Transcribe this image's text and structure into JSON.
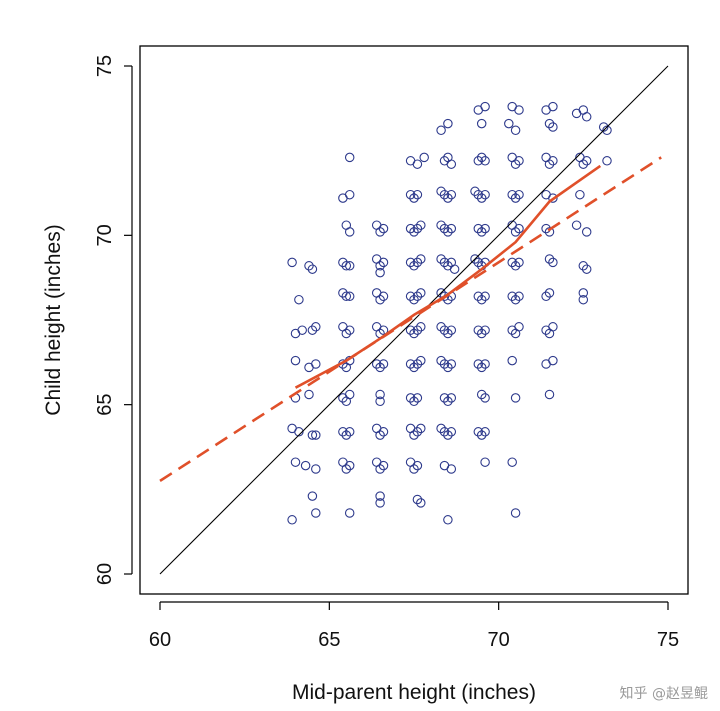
{
  "chart_data": {
    "type": "scatter",
    "title": "",
    "xlabel": "Mid-parent height (inches)",
    "ylabel": "Child height (inches)",
    "xlim": [
      59.4,
      75.6
    ],
    "ylim": [
      59.4,
      75.6
    ],
    "xticks": [
      60,
      65,
      70,
      75
    ],
    "yticks": [
      60,
      65,
      70,
      75
    ],
    "series": [
      {
        "name": "observations",
        "style": "open-circle",
        "color": "#2e3a8c",
        "points": [
          [
            63.9,
            69.2
          ],
          [
            64.1,
            68.1
          ],
          [
            64.4,
            69.1
          ],
          [
            64.5,
            69.0
          ],
          [
            64.0,
            67.1
          ],
          [
            64.2,
            67.2
          ],
          [
            64.6,
            67.3
          ],
          [
            64.5,
            67.2
          ],
          [
            64.0,
            66.3
          ],
          [
            64.4,
            66.1
          ],
          [
            64.6,
            66.2
          ],
          [
            64.0,
            65.2
          ],
          [
            64.4,
            65.3
          ],
          [
            63.9,
            64.3
          ],
          [
            64.1,
            64.2
          ],
          [
            64.5,
            64.1
          ],
          [
            64.6,
            64.1
          ],
          [
            64.0,
            63.3
          ],
          [
            64.3,
            63.2
          ],
          [
            64.6,
            63.1
          ],
          [
            64.5,
            62.3
          ],
          [
            63.9,
            61.6
          ],
          [
            64.6,
            61.8
          ],
          [
            65.6,
            72.3
          ],
          [
            65.4,
            71.1
          ],
          [
            65.6,
            71.2
          ],
          [
            65.5,
            70.3
          ],
          [
            65.6,
            70.1
          ],
          [
            65.4,
            69.2
          ],
          [
            65.6,
            69.1
          ],
          [
            65.5,
            69.1
          ],
          [
            65.4,
            68.3
          ],
          [
            65.6,
            68.2
          ],
          [
            65.5,
            68.2
          ],
          [
            65.4,
            67.3
          ],
          [
            65.6,
            67.2
          ],
          [
            65.5,
            67.1
          ],
          [
            65.4,
            66.2
          ],
          [
            65.6,
            66.3
          ],
          [
            65.5,
            66.1
          ],
          [
            65.4,
            65.2
          ],
          [
            65.6,
            65.3
          ],
          [
            65.5,
            65.1
          ],
          [
            65.4,
            64.2
          ],
          [
            65.6,
            64.2
          ],
          [
            65.5,
            64.1
          ],
          [
            65.4,
            63.3
          ],
          [
            65.6,
            63.2
          ],
          [
            65.5,
            63.1
          ],
          [
            65.6,
            61.8
          ],
          [
            66.4,
            70.3
          ],
          [
            66.6,
            70.2
          ],
          [
            66.5,
            70.1
          ],
          [
            66.4,
            69.3
          ],
          [
            66.6,
            69.2
          ],
          [
            66.5,
            69.1
          ],
          [
            66.5,
            68.9
          ],
          [
            66.4,
            68.3
          ],
          [
            66.6,
            68.2
          ],
          [
            66.5,
            68.1
          ],
          [
            66.4,
            67.3
          ],
          [
            66.6,
            67.2
          ],
          [
            66.5,
            67.1
          ],
          [
            66.4,
            66.2
          ],
          [
            66.6,
            66.2
          ],
          [
            66.5,
            66.1
          ],
          [
            66.5,
            65.3
          ],
          [
            66.5,
            65.1
          ],
          [
            66.4,
            64.3
          ],
          [
            66.6,
            64.2
          ],
          [
            66.5,
            64.1
          ],
          [
            66.4,
            63.3
          ],
          [
            66.6,
            63.2
          ],
          [
            66.5,
            63.1
          ],
          [
            66.5,
            62.3
          ],
          [
            66.5,
            62.1
          ],
          [
            67.4,
            72.2
          ],
          [
            67.6,
            72.1
          ],
          [
            67.8,
            72.3
          ],
          [
            67.4,
            71.2
          ],
          [
            67.6,
            71.2
          ],
          [
            67.5,
            71.1
          ],
          [
            67.4,
            70.2
          ],
          [
            67.6,
            70.2
          ],
          [
            67.5,
            70.1
          ],
          [
            67.7,
            70.3
          ],
          [
            67.4,
            69.2
          ],
          [
            67.6,
            69.2
          ],
          [
            67.5,
            69.1
          ],
          [
            67.7,
            69.3
          ],
          [
            67.4,
            68.2
          ],
          [
            67.6,
            68.2
          ],
          [
            67.5,
            68.1
          ],
          [
            67.7,
            68.3
          ],
          [
            67.4,
            67.2
          ],
          [
            67.6,
            67.2
          ],
          [
            67.5,
            67.1
          ],
          [
            67.7,
            67.3
          ],
          [
            67.4,
            66.2
          ],
          [
            67.6,
            66.2
          ],
          [
            67.5,
            66.1
          ],
          [
            67.7,
            66.3
          ],
          [
            67.4,
            65.2
          ],
          [
            67.6,
            65.2
          ],
          [
            67.5,
            65.1
          ],
          [
            67.4,
            64.3
          ],
          [
            67.6,
            64.2
          ],
          [
            67.5,
            64.1
          ],
          [
            67.7,
            64.3
          ],
          [
            67.4,
            63.3
          ],
          [
            67.6,
            63.2
          ],
          [
            67.5,
            63.1
          ],
          [
            67.6,
            62.2
          ],
          [
            67.7,
            62.1
          ],
          [
            68.3,
            73.1
          ],
          [
            68.5,
            73.3
          ],
          [
            68.4,
            72.2
          ],
          [
            68.6,
            72.1
          ],
          [
            68.5,
            72.3
          ],
          [
            68.4,
            71.2
          ],
          [
            68.6,
            71.2
          ],
          [
            68.5,
            71.1
          ],
          [
            68.3,
            71.3
          ],
          [
            68.4,
            70.2
          ],
          [
            68.6,
            70.2
          ],
          [
            68.5,
            70.1
          ],
          [
            68.3,
            70.3
          ],
          [
            68.4,
            69.2
          ],
          [
            68.6,
            69.2
          ],
          [
            68.5,
            69.1
          ],
          [
            68.3,
            69.3
          ],
          [
            68.7,
            69.0
          ],
          [
            68.4,
            68.2
          ],
          [
            68.6,
            68.2
          ],
          [
            68.5,
            68.1
          ],
          [
            68.3,
            68.3
          ],
          [
            68.4,
            67.2
          ],
          [
            68.6,
            67.2
          ],
          [
            68.5,
            67.1
          ],
          [
            68.3,
            67.3
          ],
          [
            68.4,
            66.2
          ],
          [
            68.6,
            66.2
          ],
          [
            68.5,
            66.1
          ],
          [
            68.3,
            66.3
          ],
          [
            68.4,
            65.2
          ],
          [
            68.6,
            65.2
          ],
          [
            68.5,
            65.1
          ],
          [
            68.4,
            64.2
          ],
          [
            68.6,
            64.2
          ],
          [
            68.5,
            64.1
          ],
          [
            68.3,
            64.3
          ],
          [
            68.4,
            63.2
          ],
          [
            68.6,
            63.1
          ],
          [
            68.5,
            61.6
          ],
          [
            69.4,
            73.7
          ],
          [
            69.6,
            73.8
          ],
          [
            69.5,
            73.3
          ],
          [
            69.4,
            72.2
          ],
          [
            69.6,
            72.2
          ],
          [
            69.5,
            72.3
          ],
          [
            69.4,
            71.2
          ],
          [
            69.6,
            71.2
          ],
          [
            69.5,
            71.1
          ],
          [
            69.3,
            71.3
          ],
          [
            69.4,
            70.2
          ],
          [
            69.6,
            70.2
          ],
          [
            69.5,
            70.1
          ],
          [
            69.4,
            69.2
          ],
          [
            69.6,
            69.2
          ],
          [
            69.5,
            69.1
          ],
          [
            69.3,
            69.3
          ],
          [
            69.4,
            68.2
          ],
          [
            69.6,
            68.2
          ],
          [
            69.5,
            68.1
          ],
          [
            69.4,
            67.2
          ],
          [
            69.6,
            67.2
          ],
          [
            69.5,
            67.1
          ],
          [
            69.4,
            66.2
          ],
          [
            69.6,
            66.2
          ],
          [
            69.5,
            66.1
          ],
          [
            69.5,
            65.3
          ],
          [
            69.6,
            65.2
          ],
          [
            69.4,
            64.2
          ],
          [
            69.6,
            64.2
          ],
          [
            69.5,
            64.1
          ],
          [
            69.6,
            63.3
          ],
          [
            70.4,
            73.8
          ],
          [
            70.6,
            73.7
          ],
          [
            70.5,
            73.1
          ],
          [
            70.3,
            73.3
          ],
          [
            70.4,
            72.3
          ],
          [
            70.6,
            72.2
          ],
          [
            70.5,
            72.1
          ],
          [
            70.4,
            71.2
          ],
          [
            70.6,
            71.2
          ],
          [
            70.5,
            71.1
          ],
          [
            70.4,
            70.3
          ],
          [
            70.6,
            70.2
          ],
          [
            70.5,
            70.1
          ],
          [
            70.4,
            69.2
          ],
          [
            70.6,
            69.2
          ],
          [
            70.5,
            69.1
          ],
          [
            70.4,
            68.2
          ],
          [
            70.6,
            68.2
          ],
          [
            70.5,
            68.1
          ],
          [
            70.4,
            67.2
          ],
          [
            70.6,
            67.3
          ],
          [
            70.5,
            67.1
          ],
          [
            70.4,
            66.3
          ],
          [
            70.5,
            65.2
          ],
          [
            70.4,
            63.3
          ],
          [
            70.5,
            61.8
          ],
          [
            71.4,
            73.7
          ],
          [
            71.6,
            73.8
          ],
          [
            71.5,
            73.3
          ],
          [
            71.6,
            73.2
          ],
          [
            71.4,
            72.3
          ],
          [
            71.6,
            72.2
          ],
          [
            71.5,
            72.1
          ],
          [
            71.4,
            71.2
          ],
          [
            71.6,
            71.1
          ],
          [
            71.4,
            70.2
          ],
          [
            71.5,
            70.1
          ],
          [
            71.5,
            69.3
          ],
          [
            71.6,
            69.2
          ],
          [
            71.4,
            68.2
          ],
          [
            71.5,
            68.3
          ],
          [
            71.4,
            67.2
          ],
          [
            71.6,
            67.3
          ],
          [
            71.5,
            67.1
          ],
          [
            71.4,
            66.2
          ],
          [
            71.6,
            66.3
          ],
          [
            71.5,
            65.3
          ],
          [
            72.3,
            73.6
          ],
          [
            72.5,
            73.7
          ],
          [
            72.6,
            73.5
          ],
          [
            72.4,
            72.3
          ],
          [
            72.6,
            72.2
          ],
          [
            72.5,
            72.1
          ],
          [
            72.4,
            71.2
          ],
          [
            72.3,
            70.3
          ],
          [
            72.6,
            70.1
          ],
          [
            72.5,
            69.1
          ],
          [
            72.6,
            69.0
          ],
          [
            72.5,
            68.3
          ],
          [
            72.5,
            68.1
          ],
          [
            73.2,
            73.1
          ],
          [
            73.1,
            73.2
          ],
          [
            73.2,
            72.2
          ]
        ]
      },
      {
        "name": "identity line",
        "style": "thin-solid",
        "color": "#000000",
        "points": [
          [
            60,
            60
          ],
          [
            75,
            75
          ]
        ]
      },
      {
        "name": "regression fit",
        "style": "dashed",
        "color": "#e0502a",
        "points": [
          [
            60,
            62.75
          ],
          [
            74.8,
            72.3
          ]
        ]
      },
      {
        "name": "smoothed average",
        "style": "solid",
        "color": "#e0502a",
        "points": [
          [
            64,
            65.5
          ],
          [
            65.5,
            66.3
          ],
          [
            66.5,
            66.95
          ],
          [
            67.5,
            67.65
          ],
          [
            68.5,
            68.25
          ],
          [
            69.5,
            69.0
          ],
          [
            70.5,
            69.8
          ],
          [
            71.5,
            71.0
          ],
          [
            72.5,
            71.7
          ],
          [
            73,
            72.05
          ]
        ]
      }
    ]
  },
  "watermark": "知乎 @赵昱鲲"
}
